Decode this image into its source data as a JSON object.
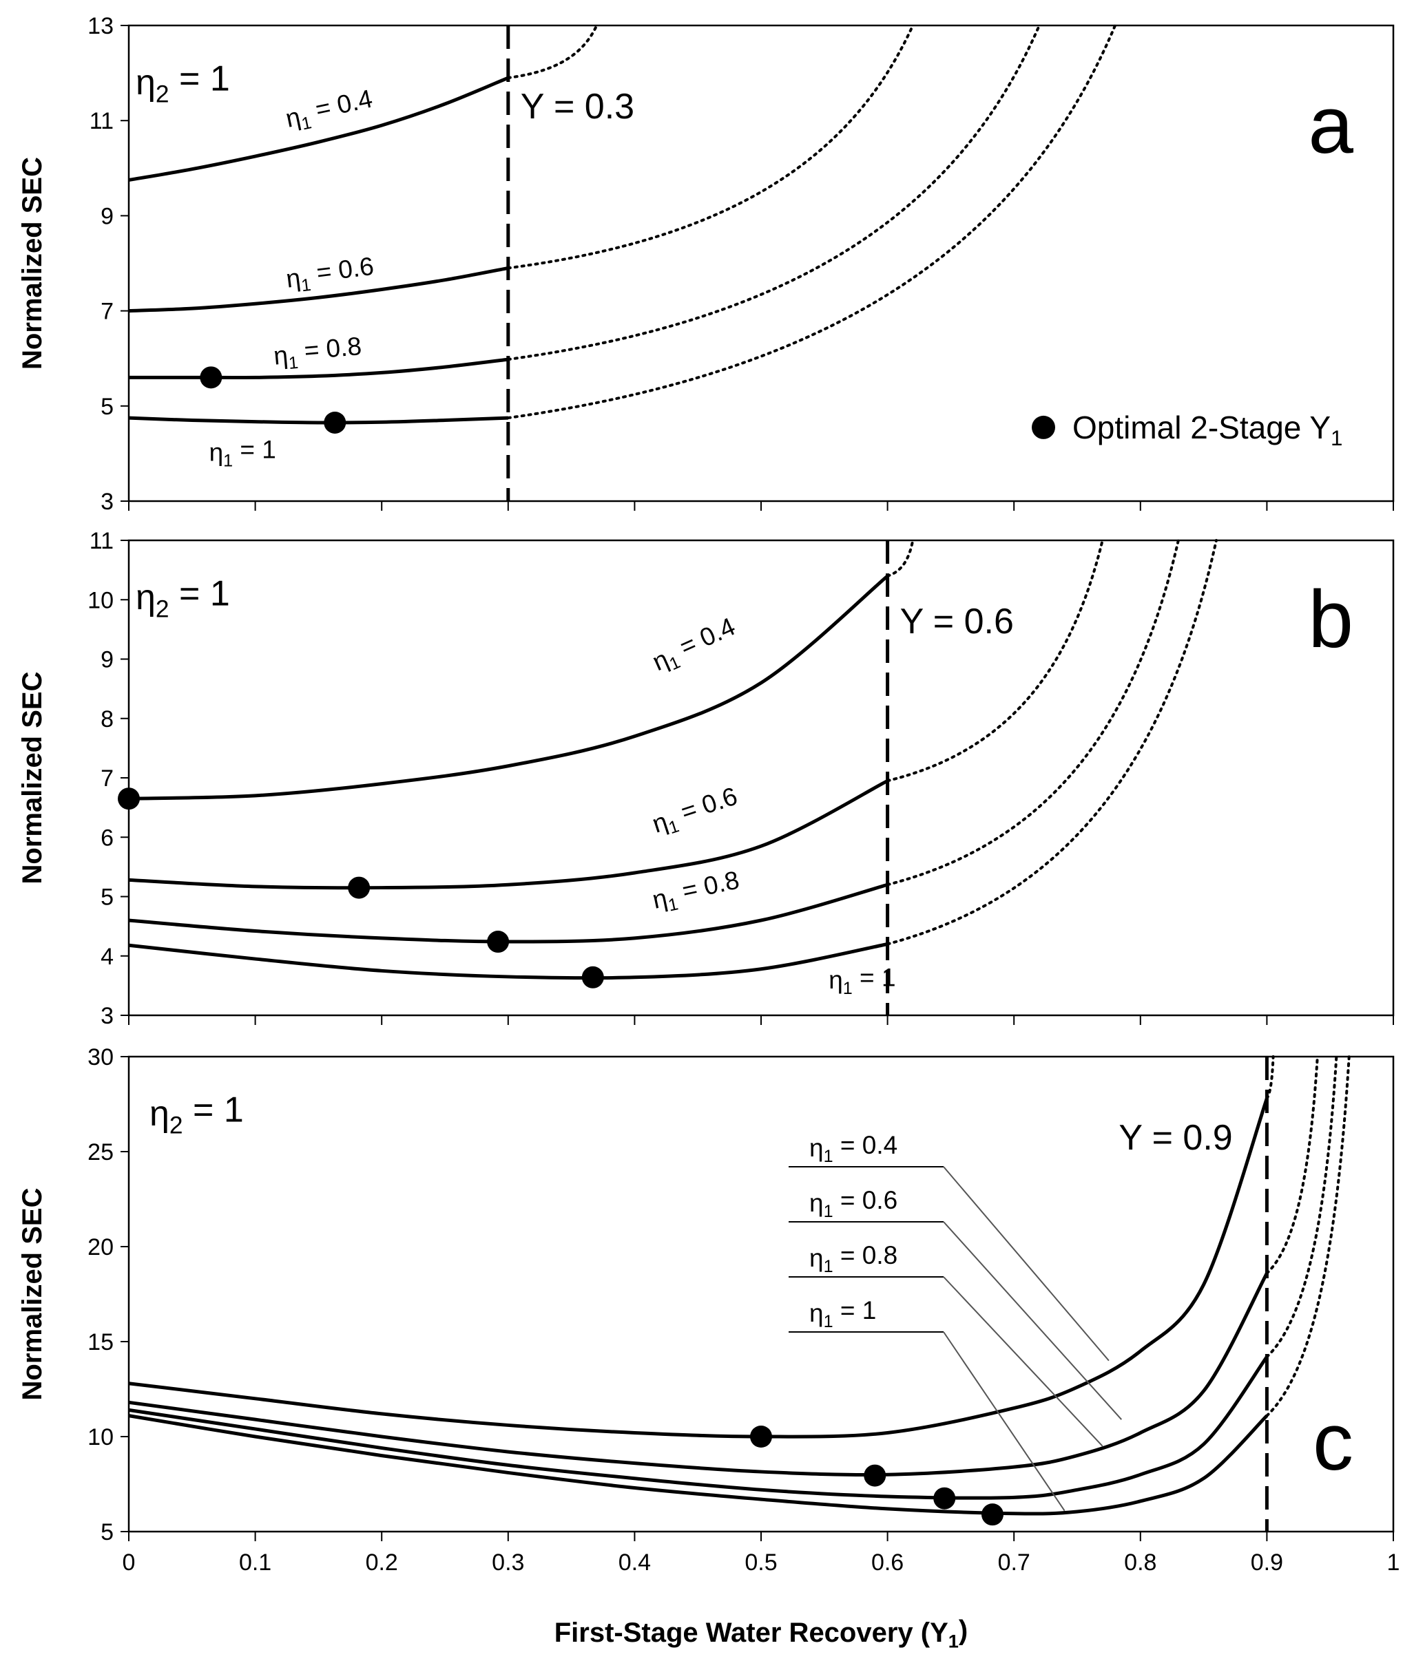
{
  "chart_data": [
    {
      "type": "line",
      "panel": "a",
      "ylabel": "Normalized SEC",
      "ylim": [
        3,
        13
      ],
      "yticks": [
        3,
        5,
        7,
        9,
        11,
        13
      ],
      "xlim": [
        0,
        1
      ],
      "constraint": {
        "x": 0.3,
        "label": "Y = 0.3"
      },
      "eta2_label": "η2 = 1",
      "series": [
        {
          "name": "η1 = 0.4",
          "x": [
            0,
            0.05,
            0.1,
            0.15,
            0.2,
            0.25,
            0.3
          ],
          "y": [
            9.75,
            9.98,
            10.25,
            10.55,
            10.9,
            11.35,
            11.9
          ],
          "optimum": null
        },
        {
          "name": "η1 = 0.6",
          "x": [
            0,
            0.05,
            0.1,
            0.15,
            0.2,
            0.25,
            0.3
          ],
          "y": [
            7.0,
            7.05,
            7.15,
            7.28,
            7.45,
            7.65,
            7.9
          ],
          "optimum": null
        },
        {
          "name": "η1 = 0.8",
          "x": [
            0,
            0.05,
            0.1,
            0.15,
            0.2,
            0.25,
            0.3
          ],
          "y": [
            5.6,
            5.6,
            5.6,
            5.63,
            5.7,
            5.82,
            5.98
          ],
          "optimum": [
            0.065,
            5.6
          ]
        },
        {
          "name": "η1 = 1",
          "x": [
            0,
            0.05,
            0.1,
            0.15,
            0.2,
            0.25,
            0.3
          ],
          "y": [
            4.75,
            4.7,
            4.67,
            4.65,
            4.66,
            4.7,
            4.75
          ],
          "optimum": [
            0.163,
            4.65
          ]
        }
      ],
      "dotted": [
        {
          "start": [
            0.3,
            11.9
          ],
          "end": [
            0.37,
            13.0
          ]
        },
        {
          "start": [
            0.3,
            7.9
          ],
          "end": [
            0.62,
            13.0
          ]
        },
        {
          "start": [
            0.3,
            5.98
          ],
          "end": [
            0.72,
            13.0
          ]
        },
        {
          "start": [
            0.3,
            4.75
          ],
          "end": [
            0.78,
            13.0
          ]
        }
      ],
      "letter": "a",
      "legend": {
        "label": "Optimal 2-Stage Y",
        "sub": "1"
      }
    },
    {
      "type": "line",
      "panel": "b",
      "ylabel": "Normalized SEC",
      "ylim": [
        3,
        11
      ],
      "yticks": [
        3,
        4,
        5,
        6,
        7,
        8,
        9,
        10,
        11
      ],
      "xlim": [
        0,
        1
      ],
      "constraint": {
        "x": 0.6,
        "label": "Y = 0.6"
      },
      "eta2_label": "η2 = 1",
      "series": [
        {
          "name": "η1 = 0.4",
          "x": [
            0,
            0.1,
            0.2,
            0.3,
            0.4,
            0.5,
            0.6
          ],
          "y": [
            6.65,
            6.7,
            6.9,
            7.2,
            7.7,
            8.6,
            10.4
          ],
          "optimum": [
            0.0,
            6.65
          ]
        },
        {
          "name": "η1 = 0.6",
          "x": [
            0,
            0.1,
            0.2,
            0.3,
            0.4,
            0.5,
            0.6
          ],
          "y": [
            5.28,
            5.17,
            5.15,
            5.2,
            5.4,
            5.85,
            6.95
          ],
          "optimum": [
            0.182,
            5.15
          ]
        },
        {
          "name": "η1 = 0.8",
          "x": [
            0,
            0.1,
            0.2,
            0.3,
            0.4,
            0.5,
            0.6
          ],
          "y": [
            4.6,
            4.42,
            4.3,
            4.24,
            4.3,
            4.6,
            5.2
          ],
          "optimum": [
            0.292,
            4.24
          ]
        },
        {
          "name": "η1 = 1",
          "x": [
            0,
            0.1,
            0.2,
            0.3,
            0.4,
            0.5,
            0.6
          ],
          "y": [
            4.18,
            3.95,
            3.75,
            3.65,
            3.64,
            3.78,
            4.2
          ],
          "optimum": [
            0.367,
            3.64
          ]
        }
      ],
      "dotted": [
        {
          "start": [
            0.6,
            10.4
          ],
          "end": [
            0.62,
            11.0
          ]
        },
        {
          "start": [
            0.6,
            6.95
          ],
          "end": [
            0.77,
            11.0
          ]
        },
        {
          "start": [
            0.6,
            5.2
          ],
          "end": [
            0.83,
            11.0
          ]
        },
        {
          "start": [
            0.6,
            4.2
          ],
          "end": [
            0.86,
            11.0
          ]
        }
      ],
      "letter": "b"
    },
    {
      "type": "line",
      "panel": "c",
      "ylabel": "Normalized SEC",
      "ylim": [
        5,
        30
      ],
      "yticks": [
        5,
        10,
        15,
        20,
        25,
        30
      ],
      "xlim": [
        0,
        1
      ],
      "xticks": [
        "0",
        "0.1",
        "0.2",
        "0.3",
        "0.4",
        "0.5",
        "0.6",
        "0.7",
        "0.8",
        "0.9",
        "1"
      ],
      "xlabel": "First-Stage Water Recovery (Y",
      "xlabel_sub": "1",
      "xlabel_end": ")",
      "constraint": {
        "x": 0.9,
        "label": "Y = 0.9"
      },
      "eta2_label": "η2 = 1",
      "series": [
        {
          "name": "η1 = 0.4",
          "x": [
            0,
            0.1,
            0.2,
            0.3,
            0.4,
            0.5,
            0.6,
            0.7,
            0.75,
            0.8,
            0.85,
            0.9
          ],
          "y": [
            12.8,
            12.0,
            11.2,
            10.6,
            10.2,
            10.0,
            10.2,
            11.5,
            12.6,
            14.5,
            18.0,
            27.8
          ],
          "optimum": [
            0.5,
            10.0
          ]
        },
        {
          "name": "η1 = 0.6",
          "x": [
            0,
            0.1,
            0.2,
            0.3,
            0.4,
            0.5,
            0.6,
            0.7,
            0.75,
            0.8,
            0.85,
            0.9
          ],
          "y": [
            11.8,
            10.9,
            10.0,
            9.2,
            8.6,
            8.15,
            8.0,
            8.4,
            9.0,
            10.2,
            12.4,
            18.6
          ],
          "optimum": [
            0.59,
            7.95
          ]
        },
        {
          "name": "η1 = 0.8",
          "x": [
            0,
            0.1,
            0.2,
            0.3,
            0.4,
            0.5,
            0.6,
            0.7,
            0.75,
            0.8,
            0.85,
            0.9
          ],
          "y": [
            11.4,
            10.4,
            9.4,
            8.5,
            7.8,
            7.2,
            6.85,
            6.8,
            7.2,
            8.0,
            9.6,
            14.2
          ],
          "optimum": [
            0.645,
            6.75
          ]
        },
        {
          "name": "η1 = 1",
          "x": [
            0,
            0.1,
            0.2,
            0.3,
            0.4,
            0.5,
            0.6,
            0.7,
            0.75,
            0.8,
            0.85,
            0.9
          ],
          "y": [
            11.1,
            10.0,
            9.0,
            8.1,
            7.3,
            6.7,
            6.2,
            5.95,
            6.05,
            6.6,
            7.8,
            11.1
          ],
          "optimum": [
            0.683,
            5.9
          ]
        }
      ],
      "dotted": [
        {
          "start": [
            0.9,
            27.8
          ],
          "end": [
            0.905,
            30.0
          ]
        },
        {
          "start": [
            0.9,
            18.6
          ],
          "end": [
            0.94,
            30.0
          ]
        },
        {
          "start": [
            0.9,
            14.2
          ],
          "end": [
            0.955,
            30.0
          ]
        },
        {
          "start": [
            0.9,
            11.1
          ],
          "end": [
            0.965,
            30.0
          ]
        }
      ],
      "letter": "c",
      "callouts": [
        "η1 = 0.4",
        "η1 = 0.6",
        "η1 = 0.8",
        "η1 = 1"
      ]
    }
  ]
}
